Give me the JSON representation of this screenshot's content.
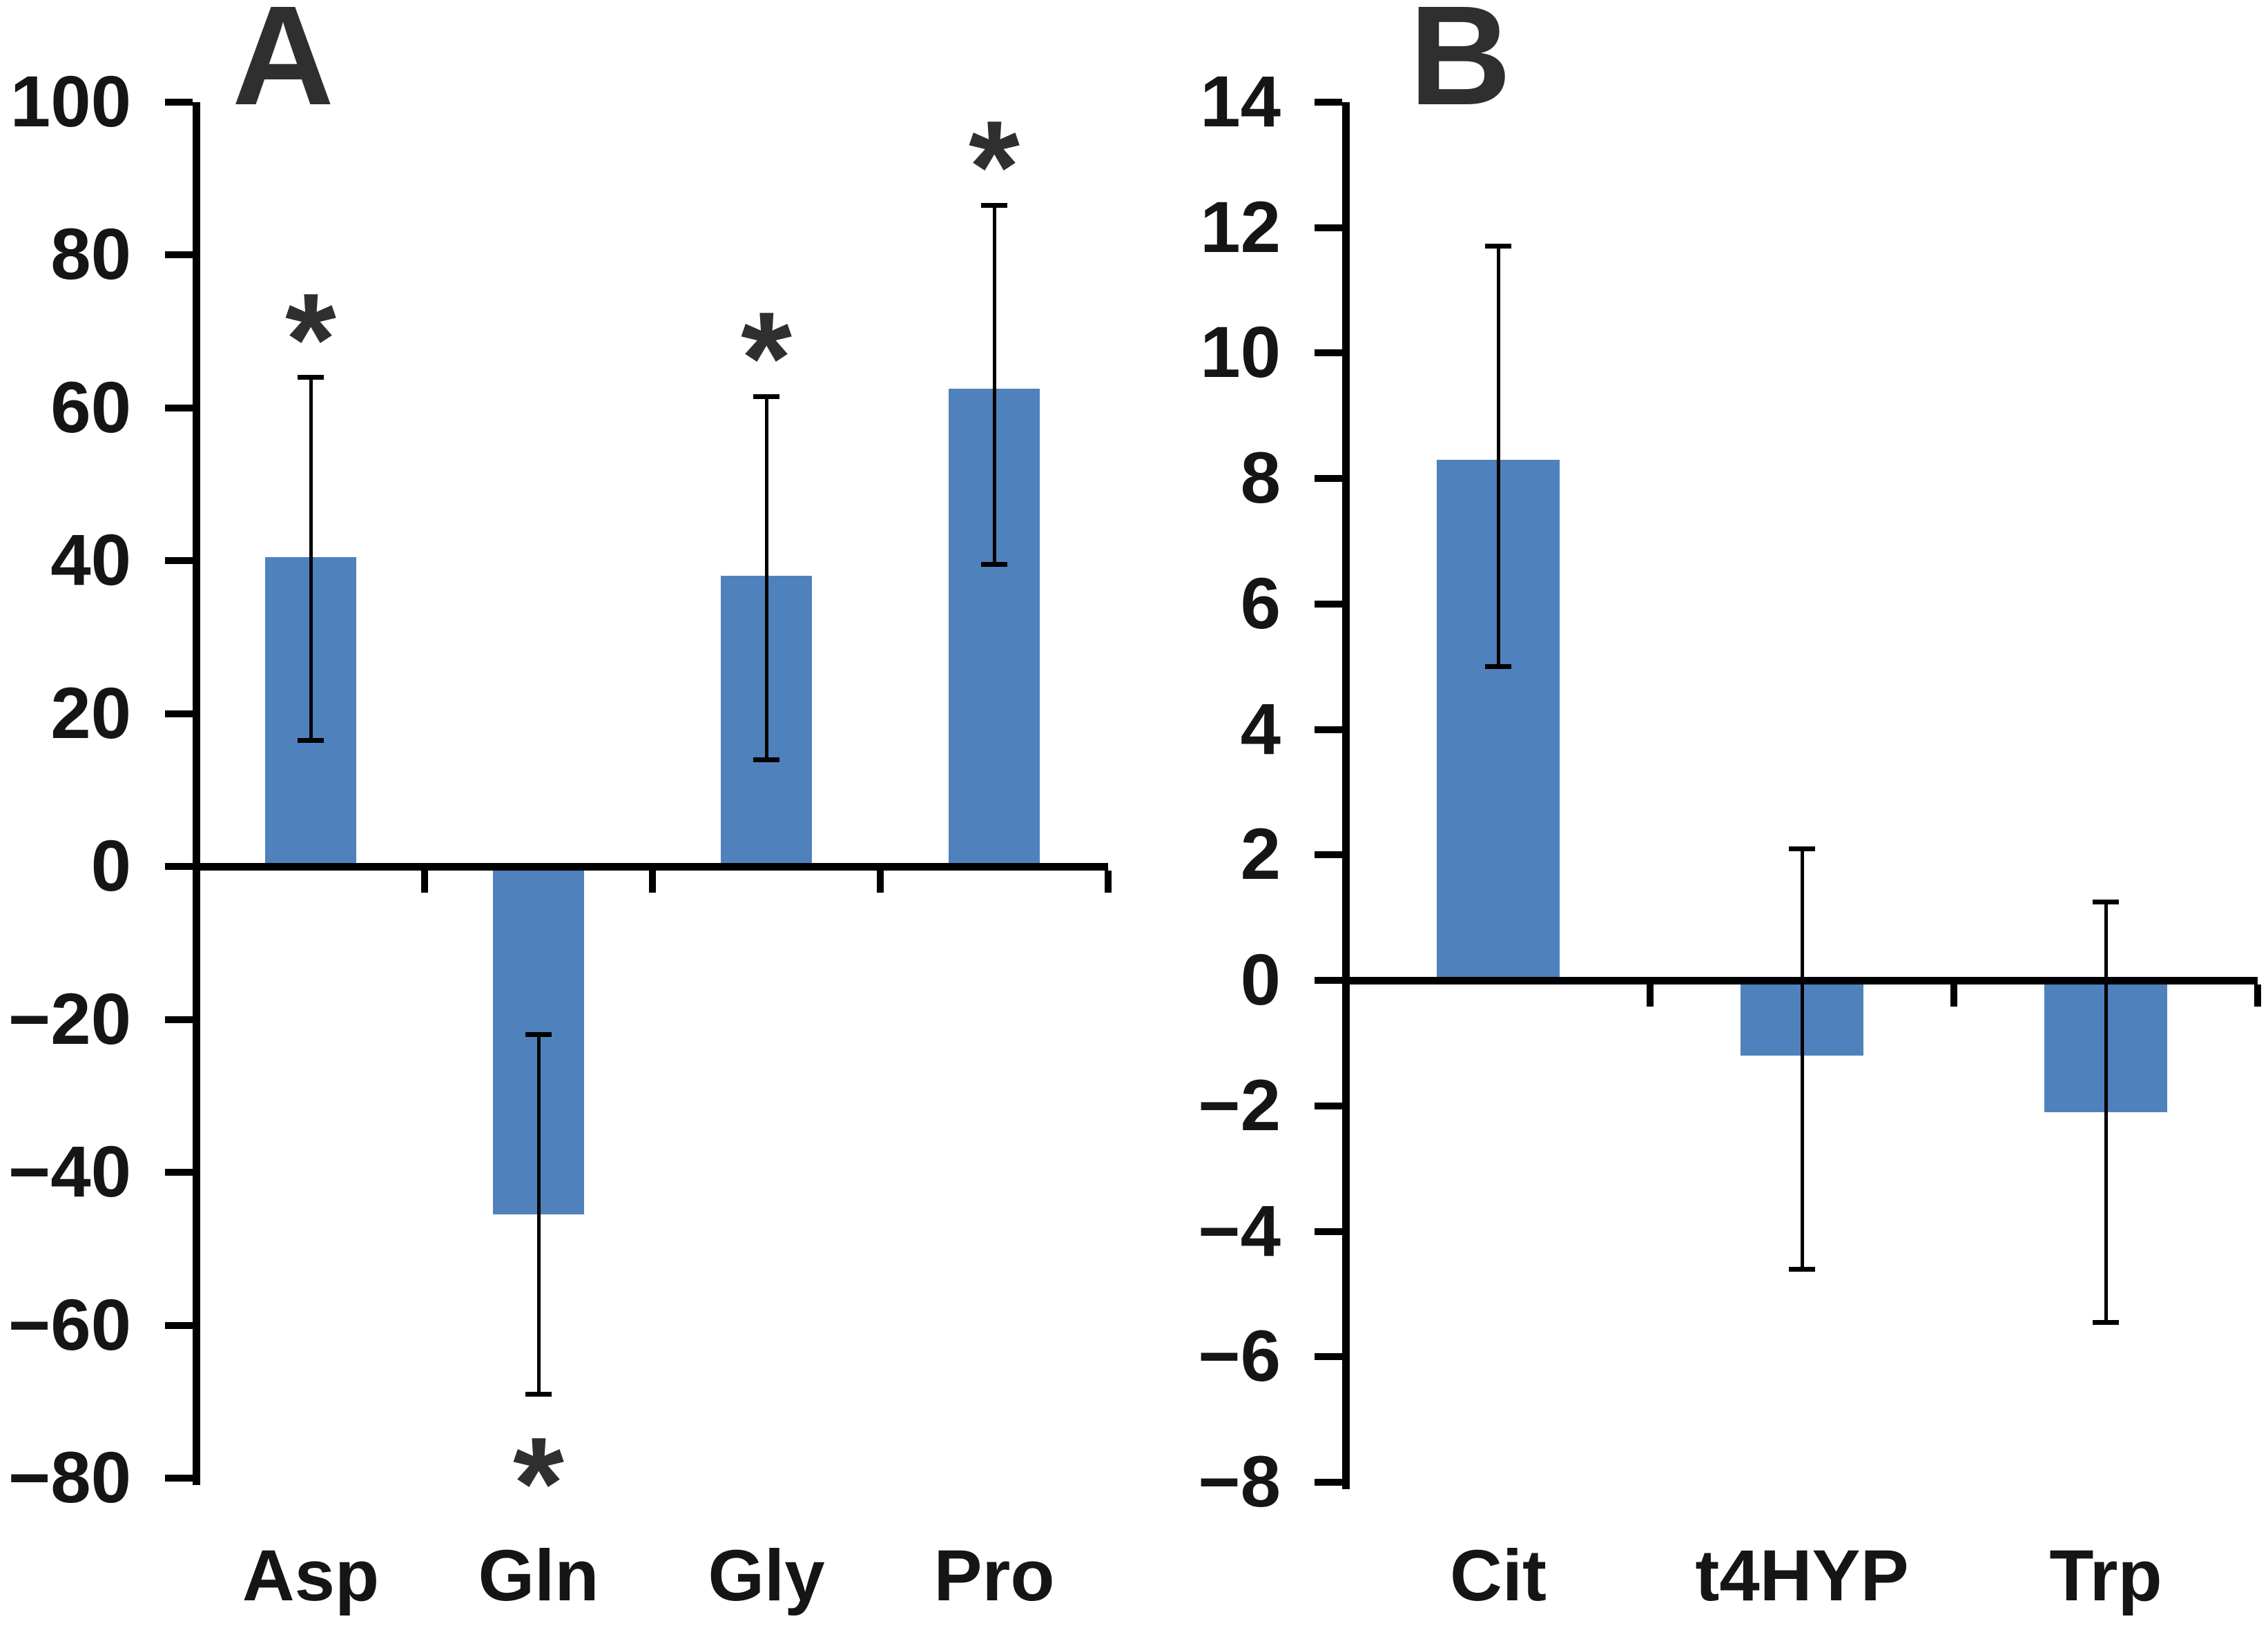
{
  "figure": {
    "background": "#ffffff",
    "bar_color": "#4f81bd",
    "axis_color": "#000000",
    "text_color": "#151515",
    "title_color": "#2f2f2f",
    "significance_marker": "*"
  },
  "chart_data": [
    {
      "type": "bar",
      "panel": "A",
      "title": "A",
      "categories": [
        "Asp",
        "Gln",
        "Gly",
        "Pro"
      ],
      "values": [
        40.5,
        -45.5,
        38,
        62.5
      ],
      "error_low": [
        16.5,
        -69,
        14,
        39.5
      ],
      "error_high": [
        64,
        -22,
        61.5,
        86.5
      ],
      "significance": [
        "*",
        "*",
        "*",
        "*"
      ],
      "ylim": [
        -80,
        100
      ],
      "ytick_step": 20,
      "ytick_labels": [
        "100",
        "80",
        "60",
        "40",
        "20",
        "0",
        "−20",
        "−40",
        "−60",
        "−80"
      ],
      "xlabel": "",
      "ylabel": "",
      "grid": false,
      "legend": null
    },
    {
      "type": "bar",
      "panel": "B",
      "title": "B",
      "categories": [
        "Cit",
        "t4HYP",
        "Trp"
      ],
      "values": [
        8.3,
        -1.2,
        -2.1
      ],
      "error_low": [
        5.0,
        -4.6,
        -5.45
      ],
      "error_high": [
        11.7,
        2.1,
        1.25
      ],
      "significance": [
        "",
        "",
        ""
      ],
      "ylim": [
        -8,
        14
      ],
      "ytick_step": 2,
      "ytick_labels": [
        "14",
        "12",
        "10",
        "8",
        "6",
        "4",
        "2",
        "0",
        "−2",
        "−4",
        "−6",
        "−8"
      ],
      "xlabel": "",
      "ylabel": "",
      "grid": false,
      "legend": null
    }
  ]
}
